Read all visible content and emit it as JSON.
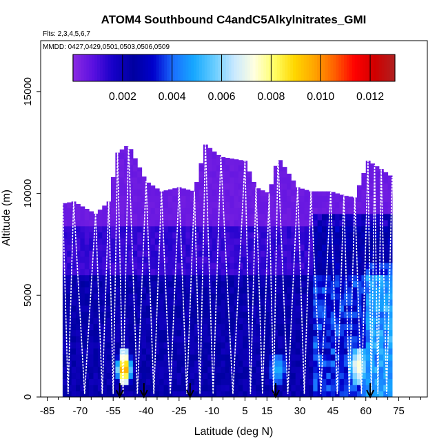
{
  "chart_data": {
    "type": "heatmap",
    "title": "ATOM4 Southbound C4andC5Alkylnitrates_GMI",
    "subtitle_flights": "Flts: 2,3,4,5,6,7",
    "subtitle_dates": "MMDD: 0427,0429,0501,0503,0506,0509",
    "xlabel": "Latitude (deg N)",
    "ylabel": "Altitude (m)",
    "xlim": [
      -88,
      88
    ],
    "ylim": [
      0,
      17500
    ],
    "x_ticks": [
      -85,
      -70,
      -55,
      -40,
      -25,
      -10,
      5,
      15,
      30,
      45,
      60,
      75
    ],
    "x_tick_labels": [
      "-85",
      "-70",
      "-55",
      "-40",
      "-25",
      "-10",
      "5",
      "15",
      "30",
      "45",
      "60",
      "75"
    ],
    "y_ticks": [
      0,
      5000,
      10000,
      15000
    ],
    "y_tick_labels": [
      "0",
      "5000",
      "10000",
      "15000"
    ],
    "colorbar": {
      "range": [
        0,
        0.013
      ],
      "ticks": [
        0.002,
        0.004,
        0.006,
        0.008,
        0.01,
        0.012
      ],
      "tick_labels": [
        "0.002",
        "0.004",
        "0.006",
        "0.008",
        "0.010",
        "0.012"
      ],
      "colors": [
        "#8a2be2",
        "#5a10e0",
        "#1500c8",
        "#0000a0",
        "#0000cd",
        "#1a70ff",
        "#16a8ff",
        "#66ccff",
        "#c8e8ff",
        "#ffffe0",
        "#ffff66",
        "#ffd700",
        "#ffa500",
        "#ff6000",
        "#ff0000",
        "#d00000",
        "#b02020"
      ]
    },
    "domain_x_range": [
      -78,
      72
    ],
    "cruise_profile": [
      [
        -78,
        9500
      ],
      [
        -73,
        9600
      ],
      [
        -63,
        9000
      ],
      [
        -57,
        9600
      ],
      [
        -53,
        12000
      ],
      [
        -48,
        12400
      ],
      [
        -40,
        10600
      ],
      [
        -33,
        10100
      ],
      [
        -25,
        10300
      ],
      [
        -18,
        10100
      ],
      [
        -13,
        12400
      ],
      [
        -6,
        11800
      ],
      [
        5,
        11600
      ],
      [
        10,
        10300
      ],
      [
        16,
        10000
      ],
      [
        20,
        11800
      ],
      [
        29,
        10300
      ],
      [
        35,
        10100
      ],
      [
        44,
        10100
      ],
      [
        50,
        9900
      ],
      [
        55,
        9800
      ],
      [
        61,
        11600
      ],
      [
        64,
        11400
      ],
      [
        67,
        11200
      ],
      [
        72,
        10800
      ]
    ],
    "arrows_x": [
      -52,
      -41,
      -20,
      19,
      62
    ],
    "hotspots": [
      {
        "x": [
          -53,
          -47
        ],
        "alt": [
          500,
          2300
        ],
        "peak": 0.0115
      },
      {
        "x": [
          16,
          24
        ],
        "alt": [
          600,
          2200
        ],
        "peak": 0.0055
      },
      {
        "x": [
          53,
          60
        ],
        "alt": [
          600,
          2500
        ],
        "peak": 0.008
      }
    ]
  }
}
